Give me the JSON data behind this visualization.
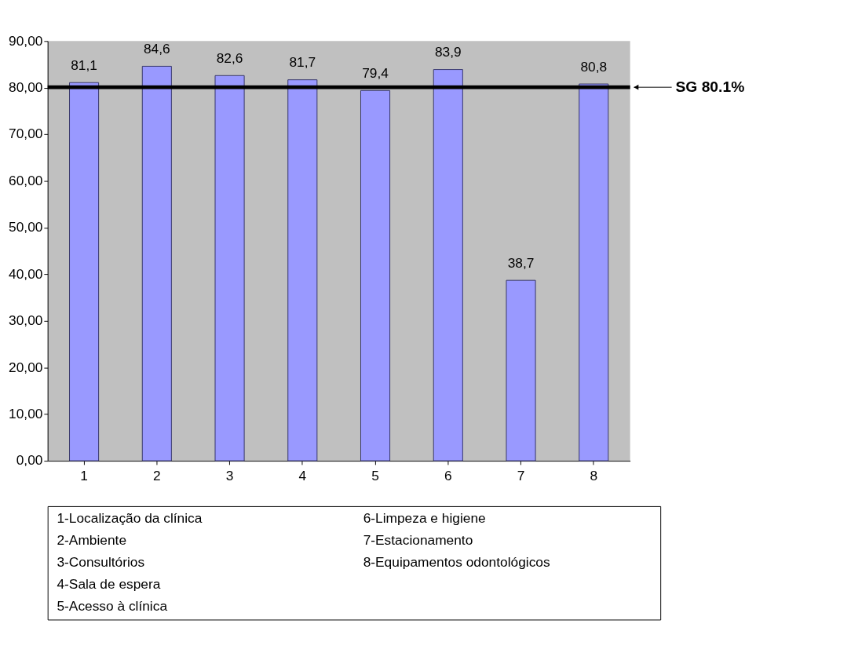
{
  "chart_data": {
    "type": "bar",
    "categories": [
      "1",
      "2",
      "3",
      "4",
      "5",
      "6",
      "7",
      "8"
    ],
    "series": [
      {
        "color": "#9999ff",
        "values": [
          81.1,
          84.6,
          82.6,
          81.7,
          79.4,
          83.9,
          38.7,
          80.8
        ],
        "value_labels": [
          "81,1",
          "84,6",
          "82,6",
          "81,7",
          "79,4",
          "83,9",
          "38,7",
          "80,8"
        ]
      }
    ],
    "ylim": [
      0,
      90
    ],
    "yticks": [
      {
        "value": 0,
        "label": "0,00"
      },
      {
        "value": 10,
        "label": "10,00"
      },
      {
        "value": 20,
        "label": "20,00"
      },
      {
        "value": 30,
        "label": "30,00"
      },
      {
        "value": 40,
        "label": "40,00"
      },
      {
        "value": 50,
        "label": "50,00"
      },
      {
        "value": 60,
        "label": "60,00"
      },
      {
        "value": 70,
        "label": "70,00"
      },
      {
        "value": 80,
        "label": "80,00"
      },
      {
        "value": 90,
        "label": "90,00"
      }
    ],
    "grid": false,
    "ref_lines": [
      {
        "axis": "y",
        "value": 80.1,
        "label": "SG 80.1%",
        "color": "#000000"
      }
    ],
    "annotations": [
      "1-Localização da clínica",
      "2-Ambiente",
      "3-Consultórios",
      "4-Sala de espera",
      "5-Acesso à clínica",
      "6-Limpeza e higiene",
      "7-Estacionamento",
      "8-Equipamentos odontológicos"
    ]
  }
}
